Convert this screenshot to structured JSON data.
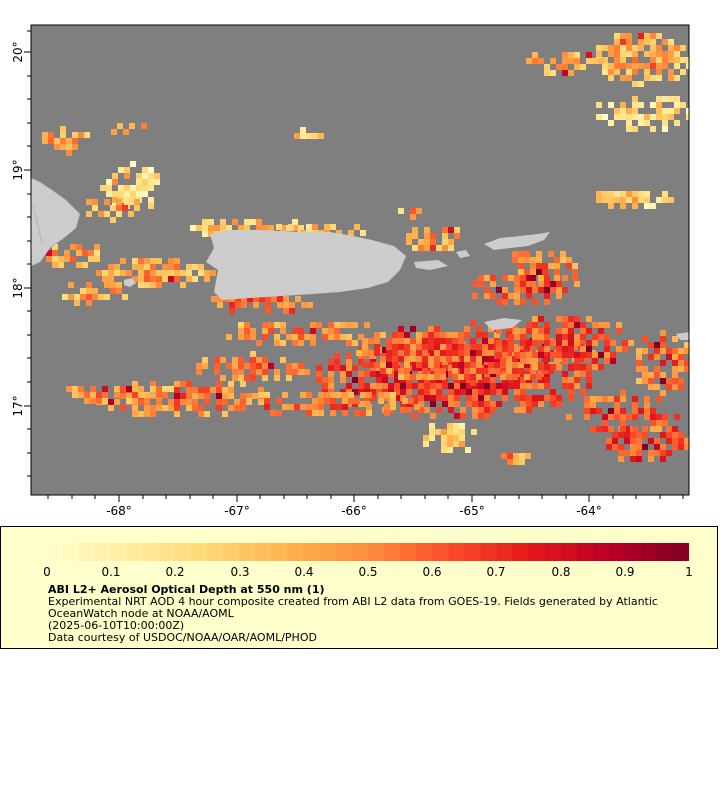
{
  "map": {
    "lat_labels": [
      "20°",
      "19°",
      "18°",
      "17°"
    ],
    "lon_labels": [
      "-68°",
      "-67°",
      "-66°",
      "-65°",
      "-64°"
    ],
    "colors": {
      "ocean_nodata": "#7f7f7f",
      "land": "#cccccc",
      "frame": "#000000"
    },
    "land_features": [
      "puerto-rico",
      "hispaniola-east-tip",
      "mona-island",
      "vieques",
      "virgin-islands",
      "st-croix"
    ]
  },
  "legend": {
    "title": "ABI L2+ Aerosol Optical Depth at 550 nm (1)",
    "description": "Experimental NRT AOD 4 hour composite created from ABI L2 data from GOES-19. Fields generated by Atlantic OceanWatch node at NOAA/AOML",
    "timestamp": "(2025-06-10T10:00:00Z)",
    "credit": "Data courtesy of USDOC/NOAA/OAR/AOML/PHOD",
    "scale_labels": [
      "0",
      "0.1",
      "0.2",
      "0.3",
      "0.4",
      "0.5",
      "0.6",
      "0.7",
      "0.8",
      "0.9",
      "1"
    ],
    "scale_min": 0,
    "scale_max": 1,
    "colormap": [
      "#ffffcc",
      "#ffeda0",
      "#fed976",
      "#feb24c",
      "#fd8d3c",
      "#fc4e2a",
      "#e31a1c",
      "#bd0026",
      "#800026"
    ]
  }
}
